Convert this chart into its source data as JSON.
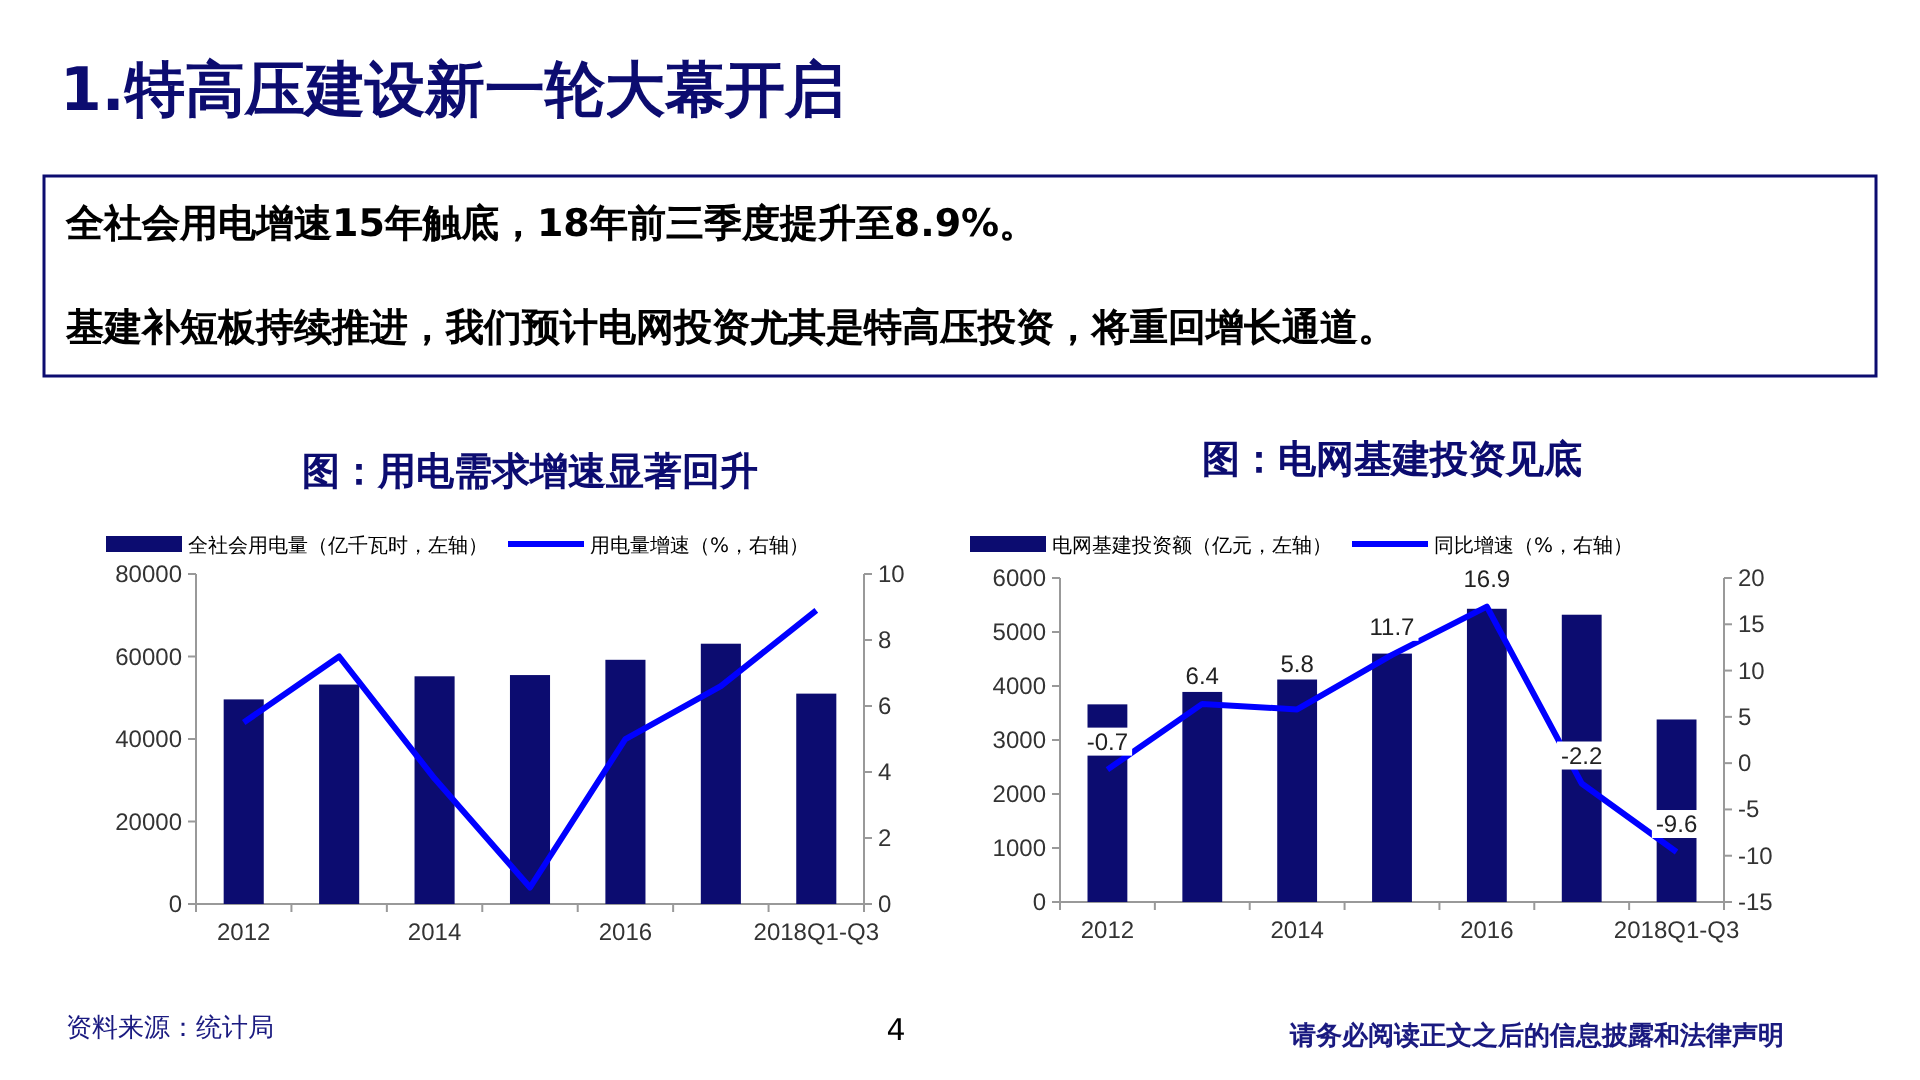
{
  "chart_data": [
    {
      "type": "other",
      "title": "1.特高压建设新一轮大幕开启",
      "annotations": [
        "全社会用电增速15年触底，18年前三季度提升至8.9%。",
        "基建补短板持续推进，我们预计电网投资尤其是特高压投资，将重回增长通道。",
        "资料来源：统计局",
        "4",
        "请务必阅读正文之后的信息披露和法律声明"
      ]
    },
    {
      "type": "bar",
      "title": "图：用电需求增速显著回升",
      "categories": [
        "2012",
        null,
        "2014",
        null,
        "2016",
        null,
        "2018Q1-Q3"
      ],
      "series": [
        {
          "type": "bar",
          "name": "全社会用电量（亿千瓦时，左轴）",
          "color": "#0c0c70",
          "values": [
            49600,
            53200,
            55200,
            55500,
            59200,
            63100,
            51000
          ]
        },
        {
          "type": "line",
          "axis": "y2",
          "name": "用电量增速（%，右轴）",
          "color": "#0000ff",
          "values": [
            5.5,
            7.5,
            3.8,
            0.5,
            5.0,
            6.6,
            8.9
          ]
        }
      ],
      "ylim": [
        0,
        80000
      ],
      "yticks": [
        0,
        20000,
        40000,
        60000,
        80000
      ],
      "y2lim": [
        0,
        10
      ],
      "y2ticks": [
        0,
        2,
        4,
        6,
        8,
        10
      ],
      "legend": "top"
    },
    {
      "type": "bar",
      "title": "图：电网基建投资见底",
      "categories": [
        "2012",
        null,
        "2014",
        null,
        "2016",
        null,
        "2018Q1-Q3"
      ],
      "series": [
        {
          "type": "bar",
          "name": "电网基建投资额（亿元，左轴）",
          "color": "#0c0c70",
          "values": [
            3660,
            3890,
            4120,
            4600,
            5430,
            5320,
            3380
          ]
        },
        {
          "type": "line",
          "axis": "y2",
          "name": "同比增速（%，右轴）",
          "color": "#0000ff",
          "values": [
            -0.7,
            6.4,
            5.8,
            11.7,
            16.9,
            -2.2,
            -9.6
          ],
          "value_labels": [
            "-0.7",
            "6.4",
            "5.8",
            "11.7",
            "16.9",
            "-2.2",
            "-9.6"
          ]
        }
      ],
      "ylim": [
        0,
        6000
      ],
      "yticks": [
        0,
        1000,
        2000,
        3000,
        4000,
        5000,
        6000
      ],
      "y2lim": [
        -15,
        20
      ],
      "y2ticks": [
        -15,
        -10,
        -5,
        0,
        5,
        10,
        15,
        20
      ],
      "legend": "top"
    }
  ]
}
